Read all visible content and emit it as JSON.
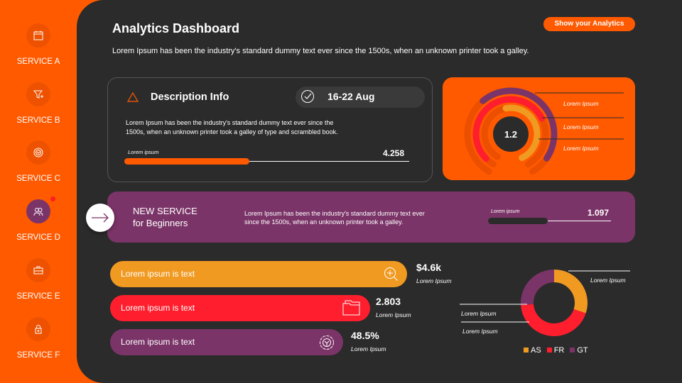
{
  "colors": {
    "orange": "#FF5A00",
    "dark": "#2B2B2B",
    "purple": "#7B3468",
    "amber": "#F09A22",
    "red": "#FF1E2D"
  },
  "sidebar": {
    "items": [
      {
        "label": "SERVICE A",
        "icon": "calendar-icon",
        "active": false
      },
      {
        "label": "SERVICE B",
        "icon": "funnel-plus-icon",
        "active": false
      },
      {
        "label": "SERVICE C",
        "icon": "gear-icon",
        "active": false
      },
      {
        "label": "SERVICE D",
        "icon": "users-icon",
        "active": true,
        "notification": true
      },
      {
        "label": "SERVICE E",
        "icon": "briefcase-icon",
        "active": false
      },
      {
        "label": "SERVICE F",
        "icon": "lock-icon",
        "active": false
      }
    ]
  },
  "header": {
    "title": "Analytics Dashboard",
    "subtitle": "Lorem Ipsum has been the industry's standard dummy text ever since the 1500s, when an unknown printer took a galley.",
    "button": "Show your Analytics"
  },
  "description_card": {
    "title": "Description Info",
    "date": "16-22 Aug",
    "text1": "Lorem Ipsum has been the industry's standard dummy text ever since the",
    "text2": "1500s, when an unknown printer took a galley of type and scrambled book.",
    "progress_label": "Lorem ipsum",
    "progress_value": "4.258",
    "progress_fraction": 0.44
  },
  "gauge": {
    "value": "1.2",
    "labels": [
      "Lorem Ipsum",
      "Lorem Ipsum",
      "Lorem Ipsum"
    ]
  },
  "new_service": {
    "title1": "NEW SERVICE",
    "title2": "for Beginners",
    "text1": "Lorem Ipsum has been the industry's standard dummy text ever",
    "text2": "since the 1500s, when an unknown printer took a galley.",
    "progress_label": "Lorem ipsum",
    "progress_value": "1.097",
    "progress_fraction": 0.49
  },
  "bars": [
    {
      "label": "Lorem ipsum is text",
      "value": "$4.6k",
      "caption": "Lorem Ipsum",
      "icon": "zoom-in-icon"
    },
    {
      "label": "Lorem ipsum is text",
      "value": "2.803",
      "caption": "Lorem Ipsum",
      "icon": "folder-icon"
    },
    {
      "label": "Lorem ipsum is text",
      "value": "48.5%",
      "caption": "Lorem Ipsum",
      "icon": "gear-icon"
    }
  ],
  "donut": {
    "labels": [
      "Lorem Ipsum",
      "Lorem Ipsum",
      "Lorem Ipsum"
    ],
    "series": [
      {
        "name": "AS",
        "value": 30
      },
      {
        "name": "FR",
        "value": 44
      },
      {
        "name": "GT",
        "value": 26
      }
    ]
  }
}
